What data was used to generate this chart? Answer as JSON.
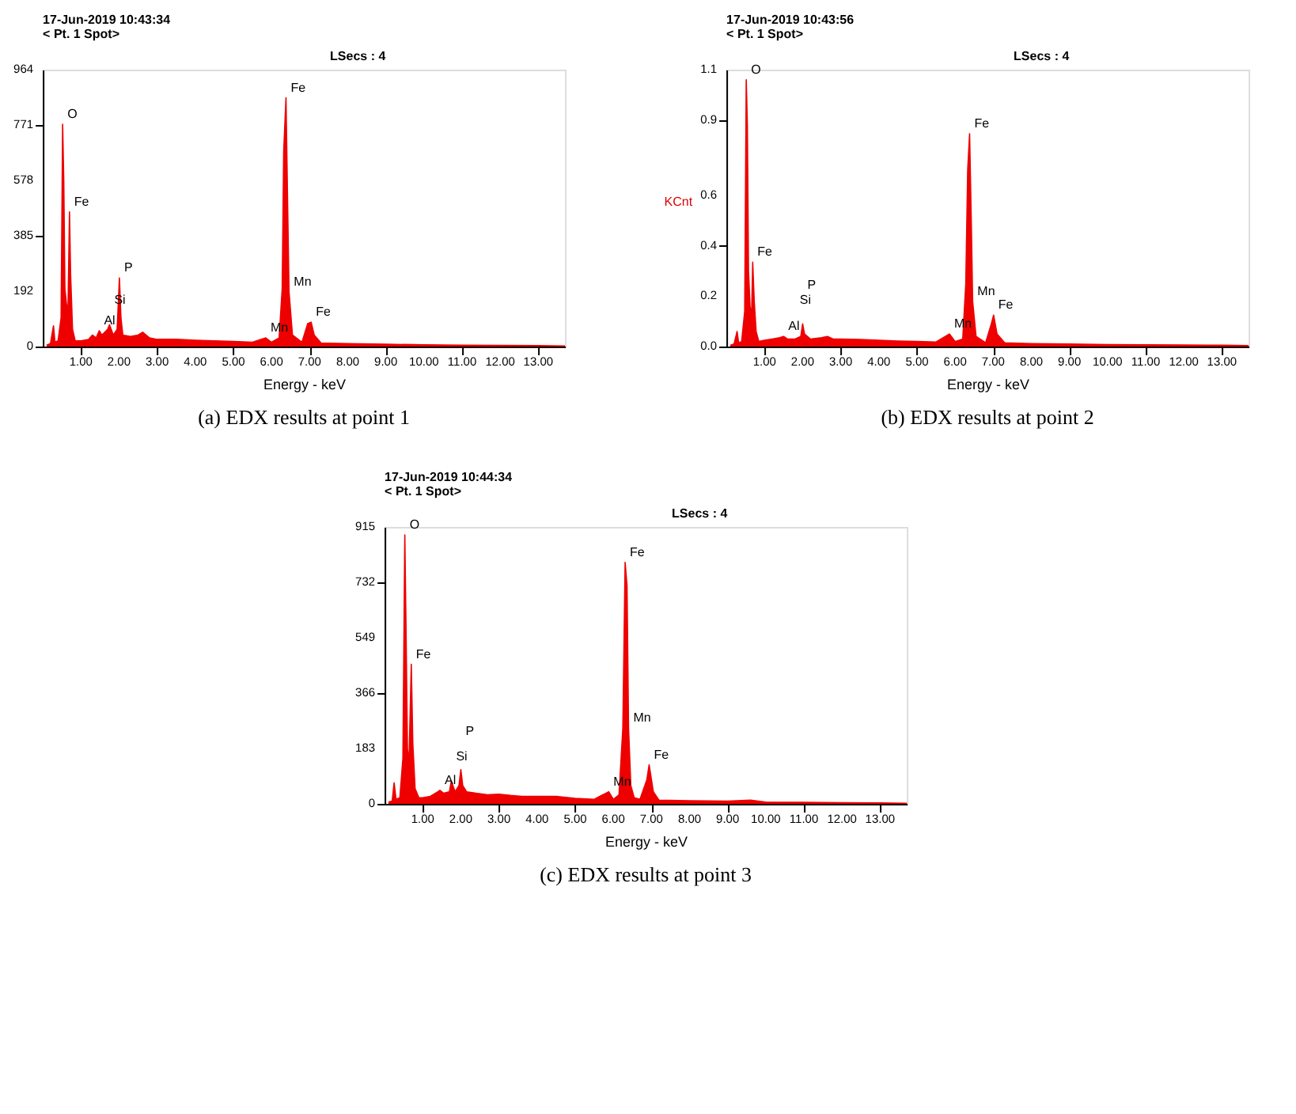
{
  "chart_data": [
    {
      "type": "area",
      "title": "17-Jun-2019 10:43:34",
      "subtitle": "< Pt. 1 Spot>",
      "xlabel": "Energy - keV",
      "grid": false,
      "xlim": [
        0,
        13.7
      ],
      "xticks": [
        {
          "value": 1,
          "label": "1.00"
        },
        {
          "value": 2,
          "label": "2.00"
        },
        {
          "value": 3,
          "label": "3.00"
        },
        {
          "value": 4,
          "label": "4.00"
        },
        {
          "value": 5,
          "label": "5.00"
        },
        {
          "value": 6,
          "label": "6.00"
        },
        {
          "value": 7,
          "label": "7.00"
        },
        {
          "value": 8,
          "label": "8.00"
        },
        {
          "value": 9,
          "label": "9.00"
        },
        {
          "value": 10,
          "label": "10.00"
        },
        {
          "value": 11,
          "label": "11.00"
        },
        {
          "value": 12,
          "label": "12.00"
        },
        {
          "value": 13,
          "label": "13.00"
        }
      ],
      "ylim": [
        0,
        964
      ],
      "yticks": [
        0,
        192,
        385,
        578,
        771,
        964
      ],
      "series": [
        {
          "color": "#ee0000",
          "x": [
            0.1,
            0.2,
            0.28,
            0.32,
            0.4,
            0.48,
            0.52,
            0.55,
            0.58,
            0.62,
            0.66,
            0.7,
            0.73,
            0.78,
            0.85,
            1.0,
            1.2,
            1.3,
            1.4,
            1.48,
            1.55,
            1.7,
            1.75,
            1.85,
            1.95,
            2.01,
            2.05,
            2.1,
            2.3,
            2.5,
            2.62,
            2.8,
            3.0,
            3.5,
            4.0,
            4.5,
            5.0,
            5.5,
            5.85,
            6.0,
            6.2,
            6.28,
            6.32,
            6.38,
            6.42,
            6.46,
            6.55,
            6.8,
            6.95,
            7.04,
            7.12,
            7.3,
            8.0,
            9.0,
            10.0,
            11.0,
            12.0,
            13.0,
            13.7
          ],
          "values": [
            5,
            10,
            72,
            15,
            20,
            100,
            774,
            580,
            200,
            150,
            120,
            469,
            250,
            60,
            20,
            20,
            25,
            40,
            30,
            55,
            40,
            60,
            76,
            40,
            60,
            239,
            100,
            40,
            35,
            40,
            50,
            30,
            25,
            25,
            22,
            20,
            18,
            15,
            30,
            15,
            30,
            200,
            680,
            866,
            520,
            190,
            40,
            15,
            80,
            85,
            40,
            12,
            10,
            8,
            6,
            5,
            4,
            3,
            2
          ]
        }
      ],
      "annotations": [
        "LSecs : 4",
        "(a) EDX results at point 1",
        {
          "text": "O",
          "x": 0.52,
          "y": 774
        },
        {
          "text": "Fe",
          "x": 0.7,
          "y": 469
        },
        {
          "text": "Al",
          "x": 1.48,
          "y": 55
        },
        {
          "text": "Si",
          "x": 1.75,
          "y": 76
        },
        {
          "text": "P",
          "x": 2.01,
          "y": 239
        },
        {
          "text": "Mn",
          "x": 5.85,
          "y": 30
        },
        {
          "text": "Fe",
          "x": 6.38,
          "y": 866
        },
        {
          "text": "Mn",
          "x": 6.46,
          "y": 190
        },
        {
          "text": "Fe",
          "x": 7.04,
          "y": 85
        }
      ]
    },
    {
      "type": "area",
      "title": "17-Jun-2019 10:43:56",
      "subtitle": "< Pt. 1 Spot>",
      "xlabel": "Energy - keV",
      "ylabel": "KCnt",
      "grid": false,
      "xlim": [
        0,
        13.7
      ],
      "xticks": [
        {
          "value": 1,
          "label": "1.00"
        },
        {
          "value": 2,
          "label": "2.00"
        },
        {
          "value": 3,
          "label": "3.00"
        },
        {
          "value": 4,
          "label": "4.00"
        },
        {
          "value": 5,
          "label": "5.00"
        },
        {
          "value": 6,
          "label": "6.00"
        },
        {
          "value": 7,
          "label": "7.00"
        },
        {
          "value": 8,
          "label": "8.00"
        },
        {
          "value": 9,
          "label": "9.00"
        },
        {
          "value": 10,
          "label": "10.00"
        },
        {
          "value": 11,
          "label": "11.00"
        },
        {
          "value": 12,
          "label": "12.00"
        },
        {
          "value": 13,
          "label": "13.00"
        }
      ],
      "ylim": [
        0,
        1.1
      ],
      "yticks": [
        {
          "value": 0,
          "label": "0.0"
        },
        0.2,
        0.4,
        0.6,
        0.9,
        1.1
      ],
      "series": [
        {
          "color": "#ee0000",
          "x": [
            0.1,
            0.2,
            0.28,
            0.32,
            0.4,
            0.48,
            0.52,
            0.55,
            0.58,
            0.62,
            0.66,
            0.69,
            0.73,
            0.78,
            0.85,
            1.0,
            1.2,
            1.4,
            1.5,
            1.6,
            1.8,
            1.95,
            2.0,
            2.05,
            2.2,
            2.5,
            2.65,
            2.8,
            3.0,
            3.5,
            4.0,
            4.5,
            5.0,
            5.5,
            5.85,
            6.0,
            6.2,
            6.28,
            6.33,
            6.38,
            6.43,
            6.46,
            6.55,
            6.8,
            6.95,
            7.01,
            7.1,
            7.3,
            8.0,
            9.0,
            10.0,
            11.0,
            12.0,
            13.0,
            13.7
          ],
          "values": [
            0.005,
            0.01,
            0.06,
            0.015,
            0.02,
            0.14,
            1.06,
            0.88,
            0.3,
            0.16,
            0.12,
            0.335,
            0.18,
            0.06,
            0.02,
            0.025,
            0.03,
            0.035,
            0.04,
            0.03,
            0.03,
            0.04,
            0.09,
            0.05,
            0.03,
            0.035,
            0.04,
            0.03,
            0.03,
            0.028,
            0.025,
            0.022,
            0.02,
            0.018,
            0.05,
            0.02,
            0.03,
            0.25,
            0.7,
            0.845,
            0.45,
            0.18,
            0.04,
            0.015,
            0.09,
            0.125,
            0.05,
            0.015,
            0.012,
            0.01,
            0.008,
            0.007,
            0.006,
            0.005,
            0.004
          ]
        }
      ],
      "annotations": [
        "LSecs : 4",
        "(b) EDX results at point 2",
        {
          "text": "O",
          "x": 0.52,
          "y": 1.06
        },
        {
          "text": "Fe",
          "x": 0.69,
          "y": 0.335
        },
        {
          "text": "Al",
          "x": 1.5,
          "y": 0.04
        },
        {
          "text": "Si",
          "x": 1.8,
          "y": 0.03
        },
        {
          "text": "P",
          "x": 2.0,
          "y": 0.09
        },
        {
          "text": "Mn",
          "x": 5.85,
          "y": 0.05
        },
        {
          "text": "Fe",
          "x": 6.38,
          "y": 0.845
        },
        {
          "text": "Mn",
          "x": 6.46,
          "y": 0.18
        },
        {
          "text": "Fe",
          "x": 7.01,
          "y": 0.125
        }
      ]
    },
    {
      "type": "area",
      "title": "17-Jun-2019 10:44:34",
      "subtitle": "< Pt. 1 Spot>",
      "xlabel": "Energy - keV",
      "grid": false,
      "xlim": [
        0,
        13.7
      ],
      "xticks": [
        {
          "value": 1,
          "label": "1.00"
        },
        {
          "value": 2,
          "label": "2.00"
        },
        {
          "value": 3,
          "label": "3.00"
        },
        {
          "value": 4,
          "label": "4.00"
        },
        {
          "value": 5,
          "label": "5.00"
        },
        {
          "value": 6,
          "label": "6.00"
        },
        {
          "value": 7,
          "label": "7.00"
        },
        {
          "value": 8,
          "label": "8.00"
        },
        {
          "value": 9,
          "label": "9.00"
        },
        {
          "value": 10,
          "label": "10.00"
        },
        {
          "value": 11,
          "label": "11.00"
        },
        {
          "value": 12,
          "label": "12.00"
        },
        {
          "value": 13,
          "label": "13.00"
        }
      ],
      "ylim": [
        0,
        915
      ],
      "yticks": [
        0,
        183,
        366,
        549,
        732,
        915
      ],
      "series": [
        {
          "color": "#ee0000",
          "x": [
            0.1,
            0.2,
            0.25,
            0.3,
            0.4,
            0.48,
            0.53,
            0.56,
            0.6,
            0.64,
            0.7,
            0.74,
            0.8,
            0.9,
            1.0,
            1.2,
            1.4,
            1.45,
            1.55,
            1.7,
            1.75,
            1.85,
            1.95,
            2.0,
            2.05,
            2.15,
            2.4,
            2.7,
            3.0,
            3.3,
            3.6,
            4.0,
            4.5,
            5.0,
            5.5,
            5.88,
            6.0,
            6.15,
            6.25,
            6.31,
            6.36,
            6.4,
            6.46,
            6.55,
            6.7,
            6.88,
            6.94,
            7.05,
            7.2,
            8.0,
            9.0,
            9.6,
            10.0,
            11.0,
            12.0,
            13.0,
            13.7
          ],
          "values": [
            5,
            10,
            70,
            15,
            20,
            150,
            889,
            600,
            180,
            140,
            461,
            200,
            50,
            20,
            20,
            25,
            40,
            45,
            35,
            40,
            75,
            40,
            60,
            113,
            60,
            40,
            35,
            30,
            32,
            28,
            25,
            25,
            25,
            18,
            15,
            40,
            15,
            30,
            250,
            798,
            720,
            250,
            60,
            20,
            15,
            80,
            129,
            40,
            12,
            10,
            9,
            12,
            6,
            5,
            4,
            3,
            2
          ]
        }
      ],
      "annotations": [
        "LSecs : 4",
        "(c) EDX results at point 3",
        {
          "text": "O",
          "x": 0.53,
          "y": 889
        },
        {
          "text": "Fe",
          "x": 0.7,
          "y": 461
        },
        {
          "text": "Al",
          "x": 1.45,
          "y": 45
        },
        {
          "text": "Si",
          "x": 1.75,
          "y": 75
        },
        {
          "text": "P",
          "x": 2.0,
          "y": 113
        },
        {
          "text": "Mn",
          "x": 5.88,
          "y": 40
        },
        {
          "text": "Fe",
          "x": 6.31,
          "y": 798
        },
        {
          "text": "Mn",
          "x": 6.4,
          "y": 250
        },
        {
          "text": "Fe",
          "x": 6.94,
          "y": 129
        }
      ]
    }
  ]
}
